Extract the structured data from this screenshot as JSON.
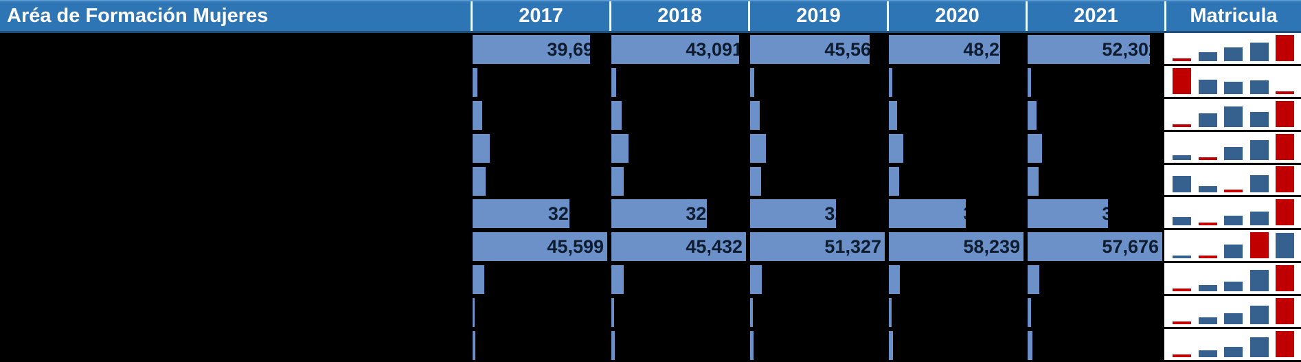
{
  "header": {
    "area_label": "Aréa de Formación Mujeres",
    "years": [
      "2017",
      "2018",
      "2019",
      "2020",
      "2021"
    ],
    "matricula_label": "Matricula"
  },
  "colors": {
    "header_bg": "#2e75b5",
    "header_text": "#ffffff",
    "header_top_edge": "#5b9bd5",
    "header_bottom_edge": "#1f4e79",
    "table_bg": "#000000",
    "databar_fill": "#6c91c9",
    "databar_text": "#0e1c30",
    "sparkline_bg": "#ffffff",
    "sparkline_bar": "#36618e",
    "sparkline_minmax": "#c00000"
  },
  "chart_data": {
    "type": "table",
    "title": "Aréa de Formación Mujeres",
    "columns": [
      "2017",
      "2018",
      "2019",
      "2020",
      "2021",
      "Matricula"
    ],
    "cell_visualization": "in-cell data bars scaled to each year column maximum; value text dark, right-aligned, hidden where bar ends (black background)",
    "matricula_visualization": "column sparkline of the 5 yearly values per row; minimum and maximum points colored red, others blue",
    "row_labels_visible": false,
    "column_max": [
      45599,
      45432,
      51327,
      58239,
      57676
    ],
    "rows": [
      {
        "values": [
          39694,
          43091,
          45563,
          48244,
          52302
        ]
      },
      {
        "values": [
          1652,
          1523,
          1498,
          1511,
          1387
        ]
      },
      {
        "values": [
          3214,
          3468,
          3621,
          3495,
          3752
        ]
      },
      {
        "values": [
          5763,
          5714,
          5952,
          6118,
          6259
        ]
      },
      {
        "values": [
          4452,
          4287,
          4231,
          4455,
          4602
        ]
      },
      {
        "values": [
          32711,
          32143,
          32855,
          33247,
          34519
        ]
      },
      {
        "values": [
          45599,
          45432,
          51327,
          58239,
          57676
        ]
      },
      {
        "values": [
          4052,
          4183,
          4327,
          4806,
          5014
        ]
      },
      {
        "values": [
          754,
          881,
          1019,
          1247,
          1496
        ]
      },
      {
        "values": [
          968,
          1154,
          1332,
          1803,
          2106
        ]
      }
    ]
  }
}
